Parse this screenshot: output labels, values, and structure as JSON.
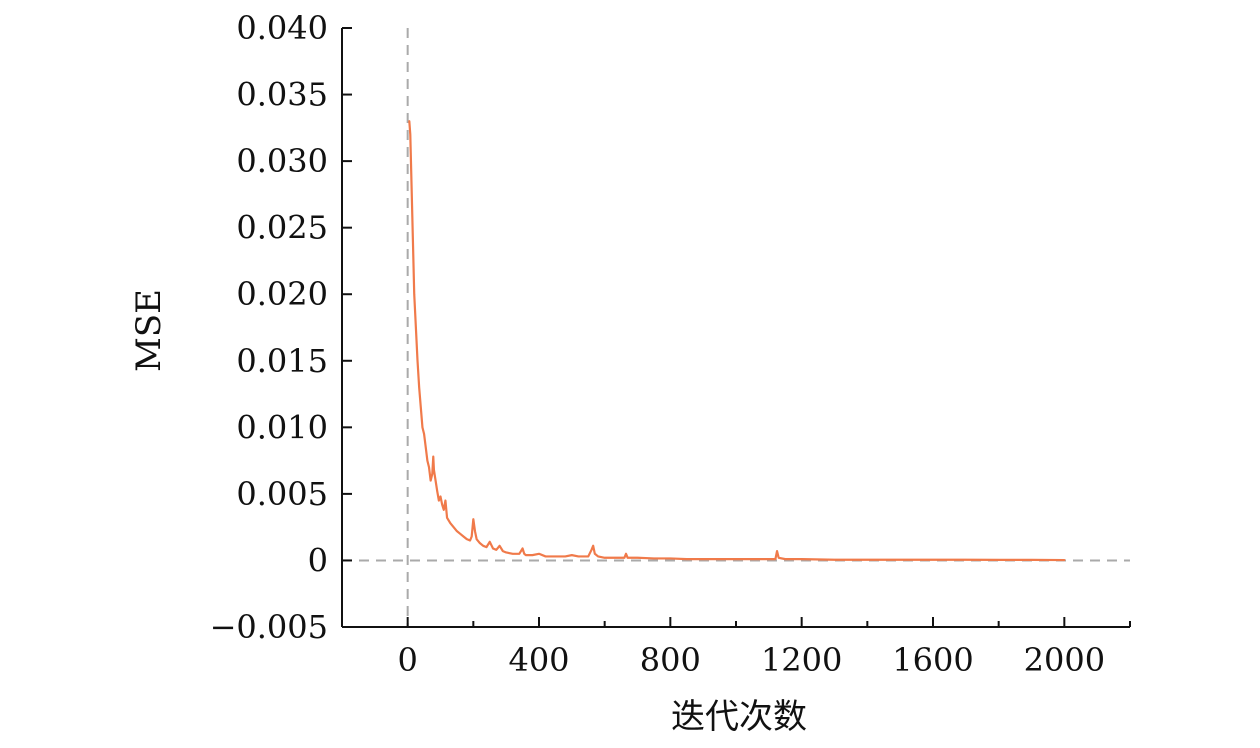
{
  "chart_data": {
    "type": "line",
    "title": "",
    "xlabel": "迭代次数",
    "ylabel": "MSE",
    "xlim": [
      -200,
      2200
    ],
    "ylim": [
      -0.005,
      0.04
    ],
    "x_ticks": [
      0,
      400,
      800,
      1200,
      1600,
      2000
    ],
    "x_tick_labels": [
      "0",
      "400",
      "800",
      "1200",
      "1600",
      "2000"
    ],
    "x_minor_ticks": [
      200,
      600,
      1000,
      1400,
      1800,
      2200
    ],
    "y_ticks": [
      -0.005,
      0,
      0.005,
      0.01,
      0.015,
      0.02,
      0.025,
      0.03,
      0.035,
      0.04
    ],
    "y_tick_labels": [
      "−0.005",
      "0",
      "0.005",
      "0.010",
      "0.015",
      "0.020",
      "0.025",
      "0.030",
      "0.035",
      "0.040"
    ],
    "reference_lines": {
      "x": 0,
      "y": 0,
      "color": "#aaaaaa",
      "style": "dashed"
    },
    "grid": false,
    "series": [
      {
        "color": "#f07a4a",
        "x": [
          5,
          8,
          12,
          16,
          20,
          25,
          30,
          35,
          40,
          45,
          50,
          55,
          60,
          65,
          70,
          75,
          78,
          80,
          85,
          90,
          95,
          100,
          105,
          110,
          115,
          120,
          130,
          140,
          150,
          160,
          170,
          180,
          190,
          195,
          200,
          205,
          210,
          220,
          230,
          240,
          250,
          260,
          270,
          280,
          290,
          300,
          320,
          340,
          350,
          355,
          360,
          380,
          400,
          420,
          450,
          480,
          500,
          520,
          550,
          560,
          565,
          570,
          580,
          600,
          640,
          660,
          665,
          670,
          700,
          750,
          800,
          850,
          900,
          950,
          1000,
          1050,
          1100,
          1120,
          1125,
          1130,
          1150,
          1200,
          1300,
          1400,
          1500,
          1600,
          1700,
          1800,
          1900,
          2000
        ],
        "y": [
          0.033,
          0.032,
          0.028,
          0.024,
          0.02,
          0.0175,
          0.015,
          0.013,
          0.0115,
          0.01,
          0.0095,
          0.0085,
          0.0075,
          0.007,
          0.006,
          0.0065,
          0.0078,
          0.0068,
          0.006,
          0.0052,
          0.0045,
          0.0048,
          0.0042,
          0.0038,
          0.0045,
          0.0032,
          0.0028,
          0.0025,
          0.0022,
          0.002,
          0.0018,
          0.0016,
          0.0015,
          0.0018,
          0.0031,
          0.0022,
          0.0016,
          0.0013,
          0.0011,
          0.001,
          0.0014,
          0.0009,
          0.0008,
          0.0011,
          0.0007,
          0.0006,
          0.0005,
          0.0005,
          0.0009,
          0.0005,
          0.0004,
          0.0004,
          0.0005,
          0.0003,
          0.0003,
          0.0003,
          0.0004,
          0.0003,
          0.0003,
          0.0008,
          0.0011,
          0.0005,
          0.0003,
          0.0002,
          0.0002,
          0.0002,
          0.0005,
          0.0002,
          0.0002,
          0.00015,
          0.00015,
          0.0001,
          0.0001,
          0.0001,
          0.0001,
          0.0001,
          0.0001,
          0.0001,
          0.0007,
          0.0002,
          0.0001,
          0.0001,
          5e-05,
          5e-05,
          5e-05,
          5e-05,
          5e-05,
          4e-05,
          4e-05,
          3e-05
        ]
      }
    ]
  }
}
